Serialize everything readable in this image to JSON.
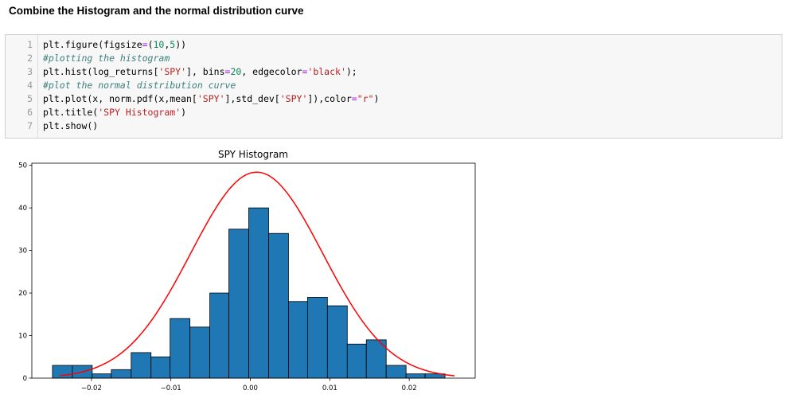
{
  "heading": "Combine the Histogram and the normal distribution curve",
  "code": {
    "lines": [
      {
        "num": "1",
        "parts": [
          {
            "t": "plt.figure(figsize",
            "c": ""
          },
          {
            "t": "=",
            "c": "eq"
          },
          {
            "t": "(",
            "c": ""
          },
          {
            "t": "10",
            "c": "num"
          },
          {
            "t": ",",
            "c": ""
          },
          {
            "t": "5",
            "c": "num"
          },
          {
            "t": "))",
            "c": ""
          }
        ]
      },
      {
        "num": "2",
        "parts": [
          {
            "t": "#plotting the histogram",
            "c": "cm"
          }
        ]
      },
      {
        "num": "3",
        "parts": [
          {
            "t": "plt.hist(log_returns[",
            "c": ""
          },
          {
            "t": "'SPY'",
            "c": "str"
          },
          {
            "t": "], bins",
            "c": ""
          },
          {
            "t": "=",
            "c": "eq"
          },
          {
            "t": "20",
            "c": "num"
          },
          {
            "t": ", edgecolor",
            "c": ""
          },
          {
            "t": "=",
            "c": "eq"
          },
          {
            "t": "'black'",
            "c": "str"
          },
          {
            "t": ");",
            "c": ""
          }
        ]
      },
      {
        "num": "4",
        "parts": [
          {
            "t": "#plot the normal distribution curve",
            "c": "cm"
          }
        ]
      },
      {
        "num": "5",
        "parts": [
          {
            "t": "plt.plot(x, norm.pdf(x,mean[",
            "c": ""
          },
          {
            "t": "'SPY'",
            "c": "str"
          },
          {
            "t": "],std_dev[",
            "c": ""
          },
          {
            "t": "'SPY'",
            "c": "str"
          },
          {
            "t": "]),color",
            "c": ""
          },
          {
            "t": "=",
            "c": "eq"
          },
          {
            "t": "\"r\"",
            "c": "str"
          },
          {
            "t": ")",
            "c": ""
          }
        ]
      },
      {
        "num": "6",
        "parts": [
          {
            "t": "plt.title(",
            "c": ""
          },
          {
            "t": "'SPY Histogram'",
            "c": "str"
          },
          {
            "t": ")",
            "c": ""
          }
        ]
      },
      {
        "num": "7",
        "parts": [
          {
            "t": "plt.show()",
            "c": ""
          }
        ]
      }
    ]
  },
  "chart_data": {
    "type": "bar",
    "title": "SPY Histogram",
    "xlabel": "",
    "ylabel": "",
    "xlim": [
      -0.0275,
      0.0283
    ],
    "ylim": [
      0,
      50.5
    ],
    "xticks": [
      -0.02,
      -0.01,
      0.0,
      0.01,
      0.02
    ],
    "xtick_labels": [
      "−0.02",
      "−0.01",
      "0.00",
      "0.01",
      "0.02"
    ],
    "yticks": [
      0,
      10,
      20,
      30,
      40,
      50
    ],
    "ytick_labels": [
      "0",
      "10",
      "20",
      "30",
      "40",
      "50"
    ],
    "bin_edges": [
      -0.0249,
      -0.0224,
      -0.0199,
      -0.0175,
      -0.015,
      -0.0125,
      -0.0101,
      -0.0076,
      -0.0051,
      -0.0027,
      -0.0002,
      0.0023,
      0.0048,
      0.0072,
      0.0097,
      0.0122,
      0.0146,
      0.0171,
      0.0196,
      0.022,
      0.0245
    ],
    "counts": [
      3,
      3,
      1,
      2,
      6,
      5,
      14,
      12,
      20,
      35,
      40,
      34,
      18,
      19,
      17,
      8,
      9,
      3,
      1,
      1
    ],
    "bar_color": "#1f77b4",
    "edge_color": "#000000",
    "curve": {
      "color": "#ff0000",
      "label": "norm.pdf",
      "x_range": [
        -0.024,
        0.0257
      ],
      "mean": 0.0008,
      "peak": 48.4,
      "std": 0.0083
    },
    "grid": false
  }
}
